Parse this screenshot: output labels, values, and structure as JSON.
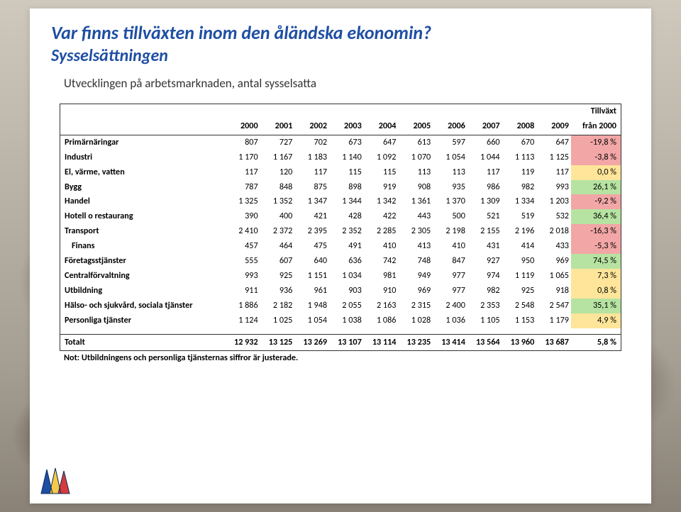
{
  "title": "Var finns tillväxten inom den åländska ekonomin?",
  "subtitle": "Sysselsättningen",
  "caption": "Utvecklingen på arbetsmarknaden, antal sysselsatta",
  "table": {
    "tillvaxt_header": "Tillväxt",
    "year_headers": [
      "2000",
      "2001",
      "2002",
      "2003",
      "2004",
      "2005",
      "2006",
      "2007",
      "2008",
      "2009",
      "från 2000"
    ],
    "rows": [
      {
        "label": "Primärnäringar",
        "indent": false,
        "values": [
          "807",
          "727",
          "702",
          "673",
          "647",
          "613",
          "597",
          "660",
          "670",
          "647"
        ],
        "pct": "-19,8 %",
        "cls": "neg-red"
      },
      {
        "label": "Industri",
        "indent": false,
        "values": [
          "1 170",
          "1 167",
          "1 183",
          "1 140",
          "1 092",
          "1 070",
          "1 054",
          "1 044",
          "1 113",
          "1 125"
        ],
        "pct": "-3,8 %",
        "cls": "neg-red"
      },
      {
        "label": "El, värme, vatten",
        "indent": false,
        "values": [
          "117",
          "120",
          "117",
          "115",
          "115",
          "113",
          "113",
          "117",
          "119",
          "117"
        ],
        "pct": "0,0 %",
        "cls": "pos-yel"
      },
      {
        "label": "Bygg",
        "indent": false,
        "values": [
          "787",
          "848",
          "875",
          "898",
          "919",
          "908",
          "935",
          "986",
          "982",
          "993"
        ],
        "pct": "26,1 %",
        "cls": "pos-grn"
      },
      {
        "label": "Handel",
        "indent": false,
        "values": [
          "1 325",
          "1 352",
          "1 347",
          "1 344",
          "1 342",
          "1 361",
          "1 370",
          "1 309",
          "1 334",
          "1 203"
        ],
        "pct": "-9,2 %",
        "cls": "neg-red"
      },
      {
        "label": "Hotell o restaurang",
        "indent": false,
        "values": [
          "390",
          "400",
          "421",
          "428",
          "422",
          "443",
          "500",
          "521",
          "519",
          "532"
        ],
        "pct": "36,4 %",
        "cls": "pos-grn"
      },
      {
        "label": "Transport",
        "indent": false,
        "values": [
          "2 410",
          "2 372",
          "2 395",
          "2 352",
          "2 285",
          "2 305",
          "2 198",
          "2 155",
          "2 196",
          "2 018"
        ],
        "pct": "-16,3 %",
        "cls": "neg-red"
      },
      {
        "label": "Finans",
        "indent": true,
        "values": [
          "457",
          "464",
          "475",
          "491",
          "410",
          "413",
          "410",
          "431",
          "414",
          "433"
        ],
        "pct": "-5,3 %",
        "cls": "neg-red"
      },
      {
        "label": "Företagsstjänster",
        "indent": false,
        "values": [
          "555",
          "607",
          "640",
          "636",
          "742",
          "748",
          "847",
          "927",
          "950",
          "969"
        ],
        "pct": "74,5 %",
        "cls": "pos-grn"
      },
      {
        "label": "Centralförvaltning",
        "indent": false,
        "values": [
          "993",
          "925",
          "1 151",
          "1 034",
          "981",
          "949",
          "977",
          "974",
          "1 119",
          "1 065"
        ],
        "pct": "7,3 %",
        "cls": "pos-yel"
      },
      {
        "label": "Utbildning",
        "indent": false,
        "values": [
          "911",
          "936",
          "961",
          "903",
          "910",
          "969",
          "977",
          "982",
          "925",
          "918"
        ],
        "pct": "0,8 %",
        "cls": "pos-yel"
      },
      {
        "label": "Hälso- och sjukvård, sociala tjänster",
        "indent": false,
        "values": [
          "1 886",
          "2 182",
          "1 948",
          "2 055",
          "2 163",
          "2 315",
          "2 400",
          "2 353",
          "2 548",
          "2 547"
        ],
        "pct": "35,1 %",
        "cls": "pos-grn"
      },
      {
        "label": "Personliga tjänster",
        "indent": false,
        "values": [
          "1 124",
          "1 025",
          "1 054",
          "1 038",
          "1 086",
          "1 028",
          "1 036",
          "1 105",
          "1 153",
          "1 179"
        ],
        "pct": "4,9 %",
        "cls": "pos-yel"
      }
    ],
    "total": {
      "label": "Totalt",
      "values": [
        "12 932",
        "13 125",
        "13 269",
        "13 107",
        "13 114",
        "13 235",
        "13 414",
        "13 564",
        "13 960",
        "13 687"
      ],
      "pct": "5,8 %"
    }
  },
  "footnote": "Not: Utbildningens och personliga tjänsternas siffror är justerade.",
  "logo_colors": {
    "top": "#f7c948",
    "mid": "#1f4fa3",
    "bot": "#d83a3a"
  }
}
